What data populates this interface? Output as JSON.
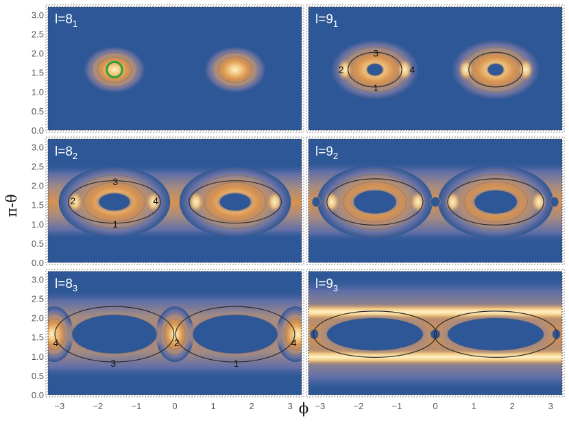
{
  "colors": {
    "background": "#2d5796",
    "low_band": "#5f6ea8",
    "mid_band": "#a28a84",
    "orange": "#d7924f",
    "high": "#f3cb84",
    "peak": "#fff1c8",
    "contour": "#2b2b2b",
    "marker": "#2e9e35"
  },
  "axes": {
    "xlabel": "ϕ",
    "ylabel": "π-θ",
    "xlim": [
      -3.3,
      3.3
    ],
    "ylim": [
      0,
      3.2
    ],
    "xticks": [
      -3,
      -2,
      -1,
      0,
      1,
      2,
      3
    ],
    "xtick_labels": [
      "−3",
      "−2",
      "−1",
      "0",
      "1",
      "2",
      "3"
    ],
    "yticks": [
      0.0,
      0.5,
      1.0,
      1.5,
      2.0,
      2.5,
      3.0
    ],
    "ytick_labels": [
      "0.0",
      "0.5",
      "1.0",
      "1.5",
      "2.0",
      "2.5",
      "3.0"
    ]
  },
  "chart_data": {
    "type": "heatmap",
    "layout": "3 rows × 2 columns of contour density plots",
    "panels": [
      {
        "id": "8_1",
        "label_main": "l=8",
        "label_sub": "1",
        "lobes": [
          {
            "cx": -1.571,
            "cy": 1.571,
            "rx": 0.8,
            "ry": 0.6
          },
          {
            "cx": 1.571,
            "cy": 1.571,
            "rx": 0.8,
            "ry": 0.6
          }
        ],
        "holes": [],
        "marker_circle": {
          "cx": -1.571,
          "cy": 1.571,
          "r": 0.2
        },
        "orbits": [],
        "point_labels": []
      },
      {
        "id": "9_1",
        "label_main": "l=9",
        "label_sub": "1",
        "lobes": [
          {
            "cx": -1.571,
            "cy": 1.571,
            "rx": 1.15,
            "ry": 0.78
          },
          {
            "cx": 1.571,
            "cy": 1.571,
            "rx": 1.15,
            "ry": 0.78
          }
        ],
        "holes": [
          {
            "cx": -1.571,
            "cy": 1.571,
            "rx": 0.2,
            "ry": 0.15
          },
          {
            "cx": 1.571,
            "cy": 1.571,
            "rx": 0.2,
            "ry": 0.15
          }
        ],
        "peaks": [
          {
            "cx": -2.35,
            "cy": 1.571
          },
          {
            "cx": -0.8,
            "cy": 1.571
          },
          {
            "cx": 0.8,
            "cy": 1.571
          },
          {
            "cx": 2.35,
            "cy": 1.571
          }
        ],
        "orbits": [
          {
            "cx": -1.571,
            "cy": 1.571,
            "rx": 0.7,
            "ry": 0.45
          },
          {
            "cx": 1.571,
            "cy": 1.571,
            "rx": 0.7,
            "ry": 0.45
          }
        ],
        "point_labels": [
          {
            "text": "1",
            "x": -1.55,
            "y": 1.1
          },
          {
            "text": "2",
            "x": -2.45,
            "y": 1.57
          },
          {
            "text": "3",
            "x": -1.55,
            "y": 2.0
          },
          {
            "text": "4",
            "x": -0.6,
            "y": 1.57
          }
        ]
      },
      {
        "id": "8_2",
        "label_main": "l=8",
        "label_sub": "2",
        "band": {
          "cy": 1.571,
          "half_height": 0.72
        },
        "lobes": [
          {
            "cx": -1.571,
            "cy": 1.571,
            "rx": 1.45,
            "ry": 0.92
          },
          {
            "cx": 1.571,
            "cy": 1.571,
            "rx": 1.45,
            "ry": 0.92
          }
        ],
        "holes": [
          {
            "cx": -1.571,
            "cy": 1.571,
            "rx": 0.4,
            "ry": 0.22
          },
          {
            "cx": 1.571,
            "cy": 1.571,
            "rx": 0.4,
            "ry": 0.22
          }
        ],
        "peaks": [
          {
            "cx": -2.6,
            "cy": 1.571
          },
          {
            "cx": -0.55,
            "cy": 1.571
          },
          {
            "cx": 0.55,
            "cy": 1.571
          },
          {
            "cx": 2.6,
            "cy": 1.571
          }
        ],
        "orbits": [
          {
            "cx": -1.571,
            "cy": 1.571,
            "rx": 1.2,
            "ry": 0.55
          },
          {
            "cx": 1.571,
            "cy": 1.571,
            "rx": 1.2,
            "ry": 0.55
          }
        ],
        "point_labels": [
          {
            "text": "1",
            "x": -1.55,
            "y": 1.0
          },
          {
            "text": "2",
            "x": -2.65,
            "y": 1.6
          },
          {
            "text": "3",
            "x": -1.55,
            "y": 2.1
          },
          {
            "text": "4",
            "x": -0.5,
            "y": 1.6
          }
        ]
      },
      {
        "id": "9_2",
        "label_main": "l=9",
        "label_sub": "2",
        "band": {
          "cy": 1.571,
          "half_height": 0.78
        },
        "lobes": [
          {
            "cx": -1.571,
            "cy": 1.571,
            "rx": 1.5,
            "ry": 0.95
          },
          {
            "cx": 1.571,
            "cy": 1.571,
            "rx": 1.5,
            "ry": 0.95
          }
        ],
        "holes": [
          {
            "cx": -1.571,
            "cy": 1.571,
            "rx": 0.55,
            "ry": 0.3
          },
          {
            "cx": 1.571,
            "cy": 1.571,
            "rx": 0.55,
            "ry": 0.3
          },
          {
            "cx": 0,
            "cy": 1.571,
            "rx": 0.12,
            "ry": 0.12
          },
          {
            "cx": -3.1,
            "cy": 1.571,
            "rx": 0.1,
            "ry": 0.12
          },
          {
            "cx": 3.1,
            "cy": 1.571,
            "rx": 0.1,
            "ry": 0.12
          }
        ],
        "peaks": [
          {
            "cx": -2.7,
            "cy": 1.571
          },
          {
            "cx": -0.45,
            "cy": 1.571
          },
          {
            "cx": 0.45,
            "cy": 1.571
          },
          {
            "cx": 2.7,
            "cy": 1.571
          }
        ],
        "orbits": [
          {
            "cx": -1.571,
            "cy": 1.571,
            "rx": 1.25,
            "ry": 0.6
          },
          {
            "cx": 1.571,
            "cy": 1.571,
            "rx": 1.25,
            "ry": 0.6
          }
        ],
        "point_labels": []
      },
      {
        "id": "8_3",
        "label_main": "l=8",
        "label_sub": "3",
        "band": {
          "cy": 1.571,
          "half_height": 0.85
        },
        "lobes": [
          {
            "cx": 0,
            "cy": 1.571,
            "rx": 0.5,
            "ry": 0.72
          },
          {
            "cx": -3.14,
            "cy": 1.571,
            "rx": 0.5,
            "ry": 0.72
          },
          {
            "cx": 3.14,
            "cy": 1.571,
            "rx": 0.5,
            "ry": 0.72
          }
        ],
        "holes": [
          {
            "cx": -1.571,
            "cy": 1.571,
            "rx": 1.1,
            "ry": 0.5
          },
          {
            "cx": 1.571,
            "cy": 1.571,
            "rx": 1.1,
            "ry": 0.5
          }
        ],
        "peaks": [
          {
            "cx": 0,
            "cy": 1.571
          },
          {
            "cx": -3.2,
            "cy": 1.571
          },
          {
            "cx": 3.2,
            "cy": 1.571
          }
        ],
        "orbits": [
          {
            "cx": -1.571,
            "cy": 1.571,
            "rx": 1.55,
            "ry": 0.72
          },
          {
            "cx": 1.571,
            "cy": 1.571,
            "rx": 1.55,
            "ry": 0.72
          }
        ],
        "point_labels": [
          {
            "text": "1",
            "x": 1.6,
            "y": 0.82
          },
          {
            "text": "2",
            "x": 0.05,
            "y": 1.35
          },
          {
            "text": "3",
            "x": -1.6,
            "y": 0.82
          },
          {
            "text": "4",
            "x": -3.1,
            "y": 1.35
          },
          {
            "text": "4",
            "x": 3.1,
            "y": 1.35
          }
        ]
      },
      {
        "id": "9_3",
        "label_main": "l=9",
        "label_sub": "3",
        "band": {
          "cy": 1.571,
          "half_height": 1.1
        },
        "lobes": [],
        "holes": [
          {
            "cx": -1.571,
            "cy": 1.571,
            "rx": 1.25,
            "ry": 0.42
          },
          {
            "cx": 1.571,
            "cy": 1.571,
            "rx": 1.25,
            "ry": 0.42
          },
          {
            "cx": 0,
            "cy": 1.571,
            "rx": 0.12,
            "ry": 0.12
          },
          {
            "cx": -3.15,
            "cy": 1.571,
            "rx": 0.1,
            "ry": 0.12
          },
          {
            "cx": 3.15,
            "cy": 1.571,
            "rx": 0.1,
            "ry": 0.12
          }
        ],
        "stripes": [
          {
            "cy": 2.15,
            "half_height": 0.13
          },
          {
            "cy": 0.98,
            "half_height": 0.13
          }
        ],
        "orbits": [
          {
            "cx": -1.571,
            "cy": 1.571,
            "rx": 1.6,
            "ry": 0.6
          },
          {
            "cx": 1.571,
            "cy": 1.571,
            "rx": 1.6,
            "ry": 0.6
          }
        ],
        "point_labels": []
      }
    ]
  }
}
